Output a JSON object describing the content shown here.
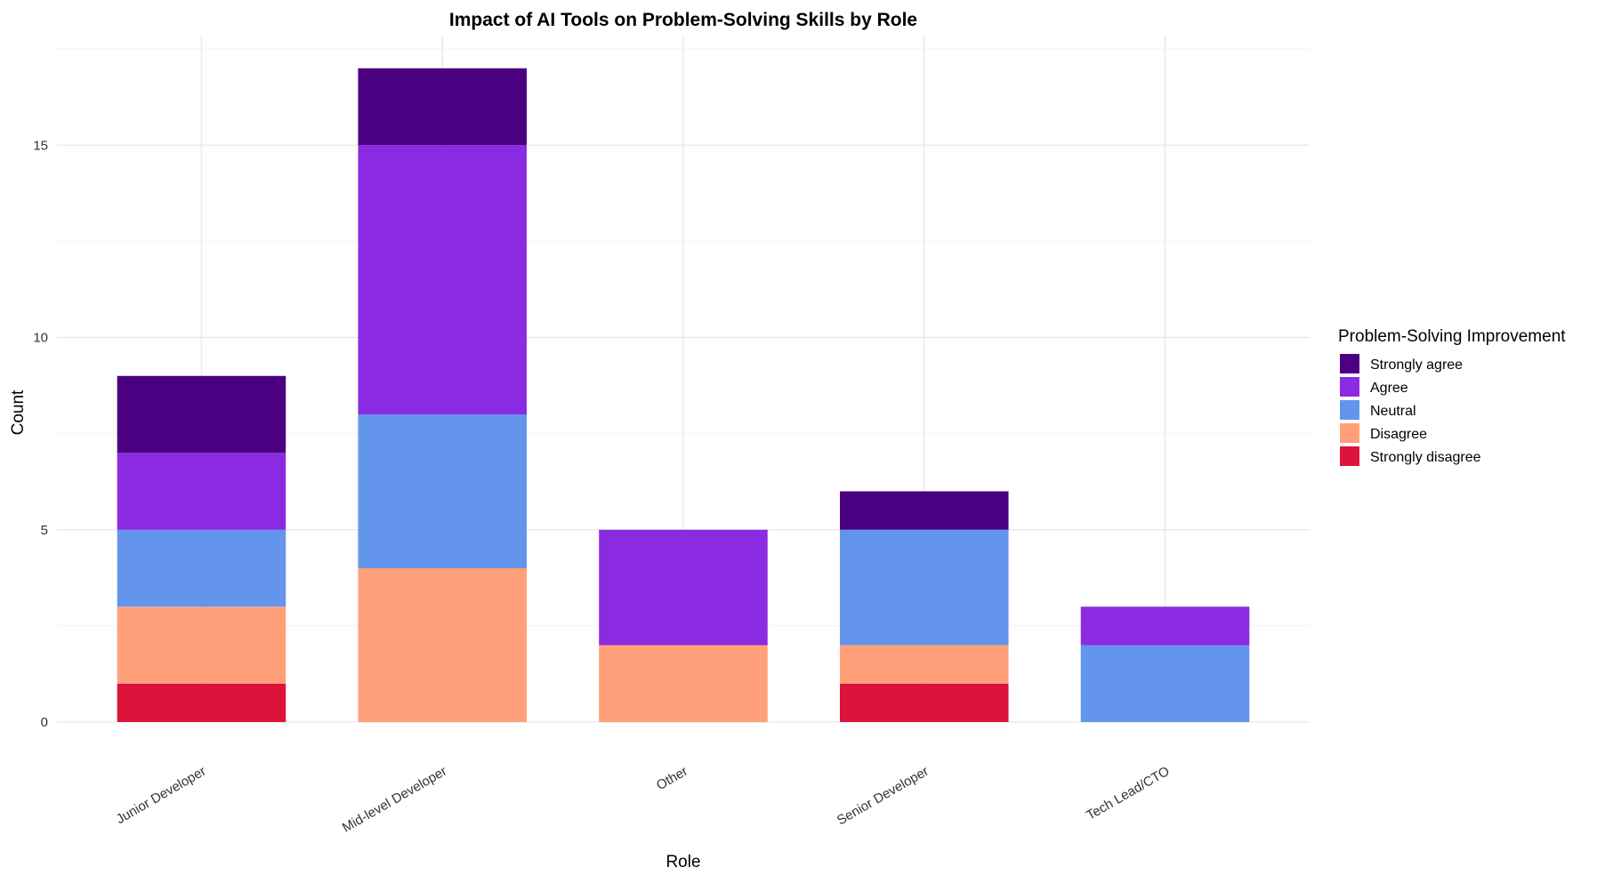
{
  "chart_data": {
    "type": "bar",
    "stacked": true,
    "title": "Impact of AI Tools on Problem-Solving Skills by Role",
    "xlabel": "Role",
    "ylabel": "Count",
    "ylim": [
      0,
      17.85
    ],
    "yticks": [
      0,
      5,
      10,
      15
    ],
    "grid": true,
    "legend_title": "Problem-Solving Improvement",
    "legend_position": "right",
    "categories": [
      "Junior Developer",
      "Mid-level Developer",
      "Other",
      "Senior Developer",
      "Tech Lead/CTO"
    ],
    "series": [
      {
        "name": "Strongly disagree",
        "color": "#DC143C",
        "values": [
          1,
          0,
          0,
          1,
          0
        ]
      },
      {
        "name": "Disagree",
        "color": "#FFA07A",
        "values": [
          2,
          4,
          2,
          1,
          0
        ]
      },
      {
        "name": "Neutral",
        "color": "#6495ED",
        "values": [
          2,
          4,
          0,
          3,
          2
        ]
      },
      {
        "name": "Agree",
        "color": "#8A2BE2",
        "values": [
          2,
          7,
          3,
          0,
          1
        ]
      },
      {
        "name": "Strongly agree",
        "color": "#4B0082",
        "values": [
          2,
          2,
          0,
          1,
          0
        ]
      }
    ],
    "legend_order": [
      "Strongly agree",
      "Agree",
      "Neutral",
      "Disagree",
      "Strongly disagree"
    ]
  }
}
